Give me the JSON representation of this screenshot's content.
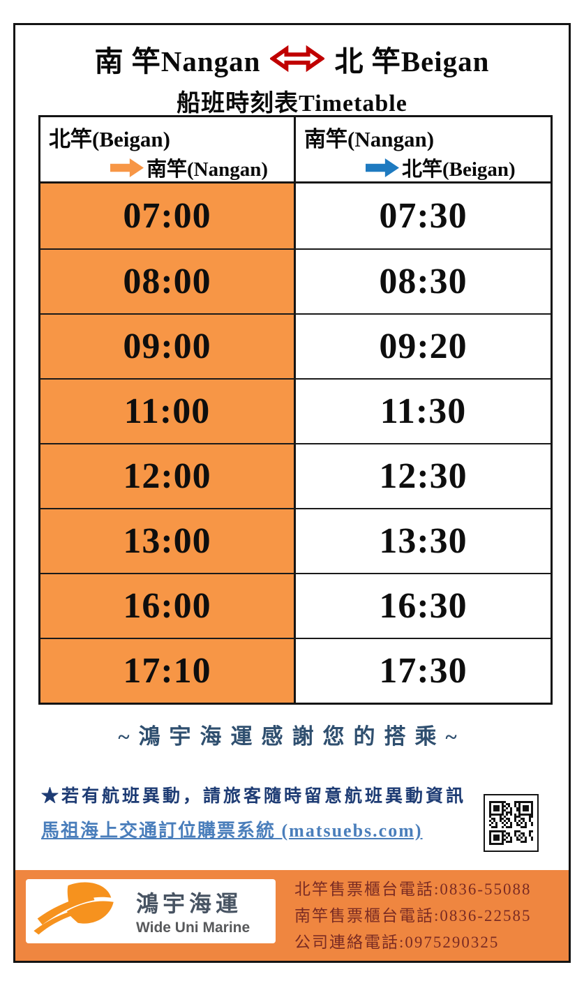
{
  "title": {
    "line1_left": "南 竿Nangan",
    "line1_right": "北 竿Beigan",
    "line2": "船班時刻表Timetable"
  },
  "table": {
    "col1_header": {
      "from": "北竿(Beigan)",
      "to": "南竿(Nangan)"
    },
    "col2_header": {
      "from": "南竿(Nangan)",
      "to": "北竿(Beigan)"
    },
    "rows": [
      {
        "beigan_to_nangan": "07:00",
        "nangan_to_beigan": "07:30"
      },
      {
        "beigan_to_nangan": "08:00",
        "nangan_to_beigan": "08:30"
      },
      {
        "beigan_to_nangan": "09:00",
        "nangan_to_beigan": "09:20"
      },
      {
        "beigan_to_nangan": "11:00",
        "nangan_to_beigan": "11:30"
      },
      {
        "beigan_to_nangan": "12:00",
        "nangan_to_beigan": "12:30"
      },
      {
        "beigan_to_nangan": "13:00",
        "nangan_to_beigan": "13:30"
      },
      {
        "beigan_to_nangan": "16:00",
        "nangan_to_beigan": "16:30"
      },
      {
        "beigan_to_nangan": "17:10",
        "nangan_to_beigan": "17:30"
      }
    ]
  },
  "thank_you": "~鴻宇海運感謝您的搭乘~",
  "notice": {
    "warning": "★若有航班異動，請旅客隨時留意航班異動資訊",
    "link": "馬祖海上交通訂位購票系統 (matsuebs.com)"
  },
  "footer": {
    "company_zh": "鴻宇海運",
    "company_en": "Wide Uni Marine",
    "phones": [
      "北竿售票櫃台電話:0836-55088",
      "南竿售票櫃台電話:0836-22585",
      "公司連絡電話:0975290325"
    ]
  },
  "icons": {
    "title_arrow": "double-headed-arrow",
    "col1_arrow": "right-arrow-orange",
    "col2_arrow": "right-arrow-blue",
    "qr": "qr-code",
    "logo": "sail-swoosh-logo"
  },
  "colors": {
    "cell_orange": "#F79646",
    "footer_orange": "#EF8640",
    "title_arrow_red": "#C00000",
    "header_arrow_orange": "#F79646",
    "header_arrow_blue": "#1E7AC0",
    "thank_you_blue": "#2F4F6F",
    "warning_navy": "#1E3C74",
    "link_blue": "#4A7EBB",
    "phone_maroon": "#7A2B23",
    "logo_orange": "#F6921E"
  }
}
